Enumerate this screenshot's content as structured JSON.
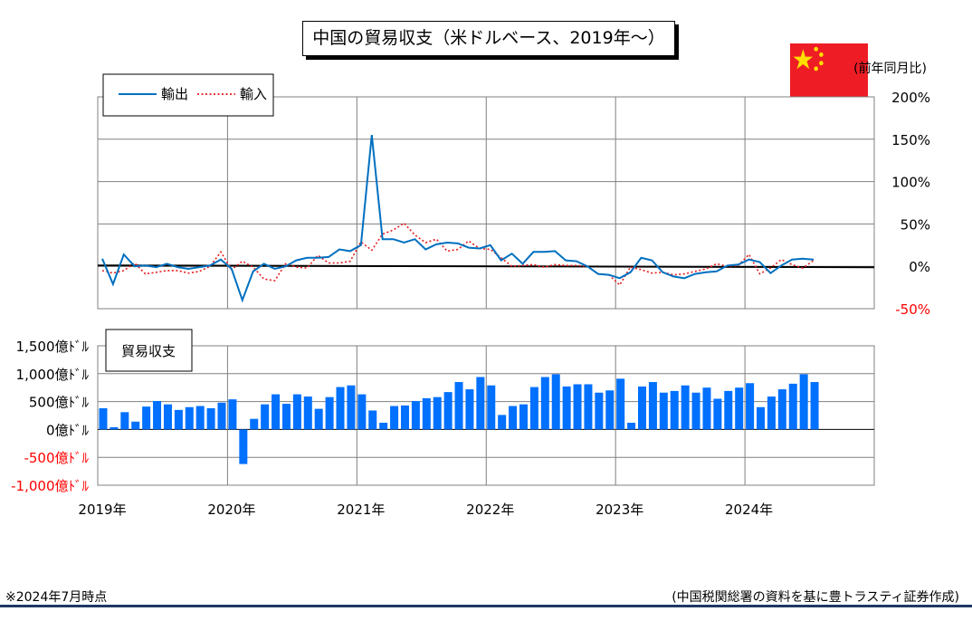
{
  "title": "中国の貿易収支（米ドルベース、2019年～）",
  "footnote": "※2024年7月時点",
  "source": "(中国税関総署の資料を基に豊トラスティ証券作成)",
  "flag": {
    "icon": "china-flag-icon",
    "red": "#ee1c25",
    "yellow": "#ffde00"
  },
  "colors": {
    "export": "#0070c0",
    "import": "#e41a1c",
    "bar": "#0070ff",
    "negative_label": "#ff0000"
  },
  "chart_data": [
    {
      "type": "line",
      "unit_label": "(前年同月比)",
      "ylim": [
        -50,
        200
      ],
      "y_ticks": [
        200,
        150,
        100,
        50,
        0,
        -50
      ],
      "y_tick_labels": [
        "200%",
        "150%",
        "100%",
        "50%",
        "0%",
        "-50%"
      ],
      "x_tick_labels": [
        "2019年",
        "2020年",
        "2021年",
        "2022年",
        "2023年",
        "2024年"
      ],
      "legend_position": "top-left",
      "grid": true,
      "series": [
        {
          "name": "輸出",
          "style": "solid",
          "values": [
            9,
            -21,
            14,
            0,
            1,
            -1,
            3,
            -1,
            -3,
            -1,
            1,
            8,
            -3,
            -40,
            -6,
            3,
            -3,
            0,
            7,
            10,
            10,
            11,
            20,
            18,
            25,
            155,
            32,
            32,
            28,
            32,
            20,
            26,
            28,
            27,
            22,
            21,
            25,
            7,
            15,
            3,
            17,
            17,
            18,
            7,
            6,
            0,
            -9,
            -10,
            -14,
            -7,
            10,
            7,
            -7,
            -12,
            -14,
            -9,
            -7,
            -6,
            1,
            2,
            8,
            5,
            -8,
            1,
            8,
            9,
            8
          ]
        },
        {
          "name": "輸入",
          "style": "dotted",
          "values": [
            -5,
            -8,
            -5,
            4,
            -9,
            -7,
            -5,
            -5,
            -8,
            -6,
            0,
            17,
            -4,
            6,
            -1,
            -15,
            -17,
            3,
            -1,
            -2,
            13,
            4,
            4,
            6,
            29,
            19,
            38,
            43,
            51,
            37,
            28,
            32,
            18,
            20,
            30,
            21,
            20,
            10,
            0,
            1,
            2,
            -1,
            2,
            1,
            1,
            0,
            -9,
            -10,
            -22,
            -1,
            -4,
            -8,
            -7,
            -10,
            -9,
            -6,
            -3,
            3,
            0,
            1,
            14,
            -9,
            -2,
            8,
            2,
            -2,
            7
          ]
        }
      ]
    },
    {
      "type": "bar",
      "title": "貿易収支",
      "ylim": [
        -1000,
        1500
      ],
      "y_ticks": [
        1500,
        1000,
        500,
        0,
        -500,
        -1000
      ],
      "y_tick_labels": [
        "1,500億ﾄﾞﾙ",
        "1,000億ﾄﾞﾙ",
        "500億ﾄﾞﾙ",
        "0億ﾄﾞﾙ",
        "-500億ﾄﾞﾙ",
        "-1,000億ﾄﾞﾙ"
      ],
      "x_tick_labels": [
        "2019年",
        "2020年",
        "2021年",
        "2022年",
        "2023年",
        "2024年"
      ],
      "grid": true,
      "series": [
        {
          "name": "貿易収支",
          "values": [
            380,
            40,
            310,
            140,
            410,
            510,
            450,
            350,
            400,
            420,
            380,
            480,
            540,
            -620,
            190,
            450,
            630,
            460,
            630,
            590,
            370,
            580,
            760,
            790,
            630,
            340,
            120,
            420,
            430,
            510,
            560,
            580,
            670,
            850,
            720,
            940,
            790,
            260,
            420,
            450,
            760,
            940,
            990,
            770,
            810,
            810,
            660,
            700,
            910,
            120,
            770,
            850,
            660,
            690,
            790,
            660,
            750,
            550,
            690,
            750,
            830,
            400,
            590,
            720,
            820,
            990,
            850
          ]
        }
      ]
    }
  ]
}
